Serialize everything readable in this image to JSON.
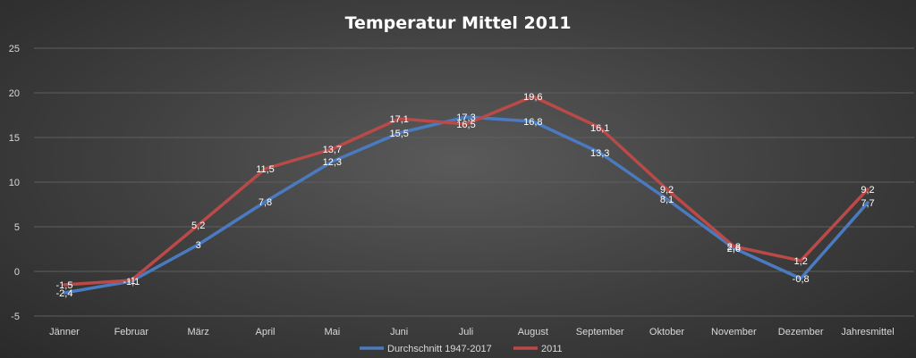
{
  "chart_data": {
    "type": "line",
    "title": "Temperatur Mittel 2011",
    "xlabel": "",
    "ylabel": "",
    "categories": [
      "Jänner",
      "Februar",
      "März",
      "April",
      "Mai",
      "Juni",
      "Juli",
      "August",
      "September",
      "Oktober",
      "November",
      "Dezember",
      "Jahresmittel"
    ],
    "ylim": [
      -5,
      25
    ],
    "yticks": [
      -5,
      0,
      5,
      10,
      15,
      20,
      25
    ],
    "grid": true,
    "legend_position": "bottom",
    "series": [
      {
        "name": "Durchschnitt 1947-2017",
        "color": "#4a7bc0",
        "values": [
          -2.4,
          -1.1,
          3,
          7.8,
          12.3,
          15.5,
          17.3,
          16.8,
          13.3,
          8.1,
          2.6,
          -0.8,
          7.7
        ],
        "labels": [
          "-2,4",
          "-1,1",
          "3",
          "7,8",
          "12,3",
          "15,5",
          "17,3",
          "16,8",
          "13,3",
          "8,1",
          "2,6",
          "-0,8",
          "7,7"
        ]
      },
      {
        "name": "2011",
        "color": "#b94a48",
        "values": [
          -1.5,
          -1,
          5.2,
          11.5,
          13.7,
          17.1,
          16.5,
          19.6,
          16.1,
          9.2,
          2.8,
          1.2,
          9.2
        ],
        "labels": [
          "-1,5",
          "-1",
          "5,2",
          "11,5",
          "13,7",
          "17,1",
          "16,5",
          "19,6",
          "16,1",
          "9,2",
          "2,8",
          "1,2",
          "9,2"
        ]
      }
    ]
  }
}
